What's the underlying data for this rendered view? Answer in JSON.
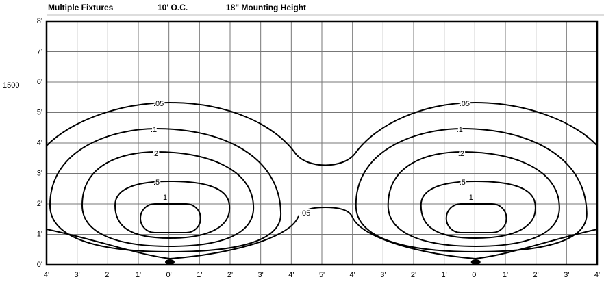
{
  "header": {
    "items": [
      "Multiple Fixtures",
      "10' O.C.",
      "18\" Mounting Height"
    ]
  },
  "side_label": "1500",
  "y_labels": [
    "8'",
    "7'",
    "6'",
    "5'",
    "4'",
    "3'",
    "2'",
    "1'",
    "0'"
  ],
  "x_labels": [
    "4'",
    "3'",
    "2'",
    "1'",
    "0'",
    "1'",
    "2'",
    "3'",
    "4'",
    "5'",
    "4'",
    "3'",
    "2'",
    "1'",
    "0'",
    "1'",
    "2'",
    "3'",
    "4'"
  ],
  "contours": {
    "left": [
      ".05",
      ".1",
      ".2",
      ".5",
      "1"
    ],
    "right": [
      ".05",
      ".1",
      ".2",
      ".5",
      "1"
    ],
    "center": ".05"
  }
}
